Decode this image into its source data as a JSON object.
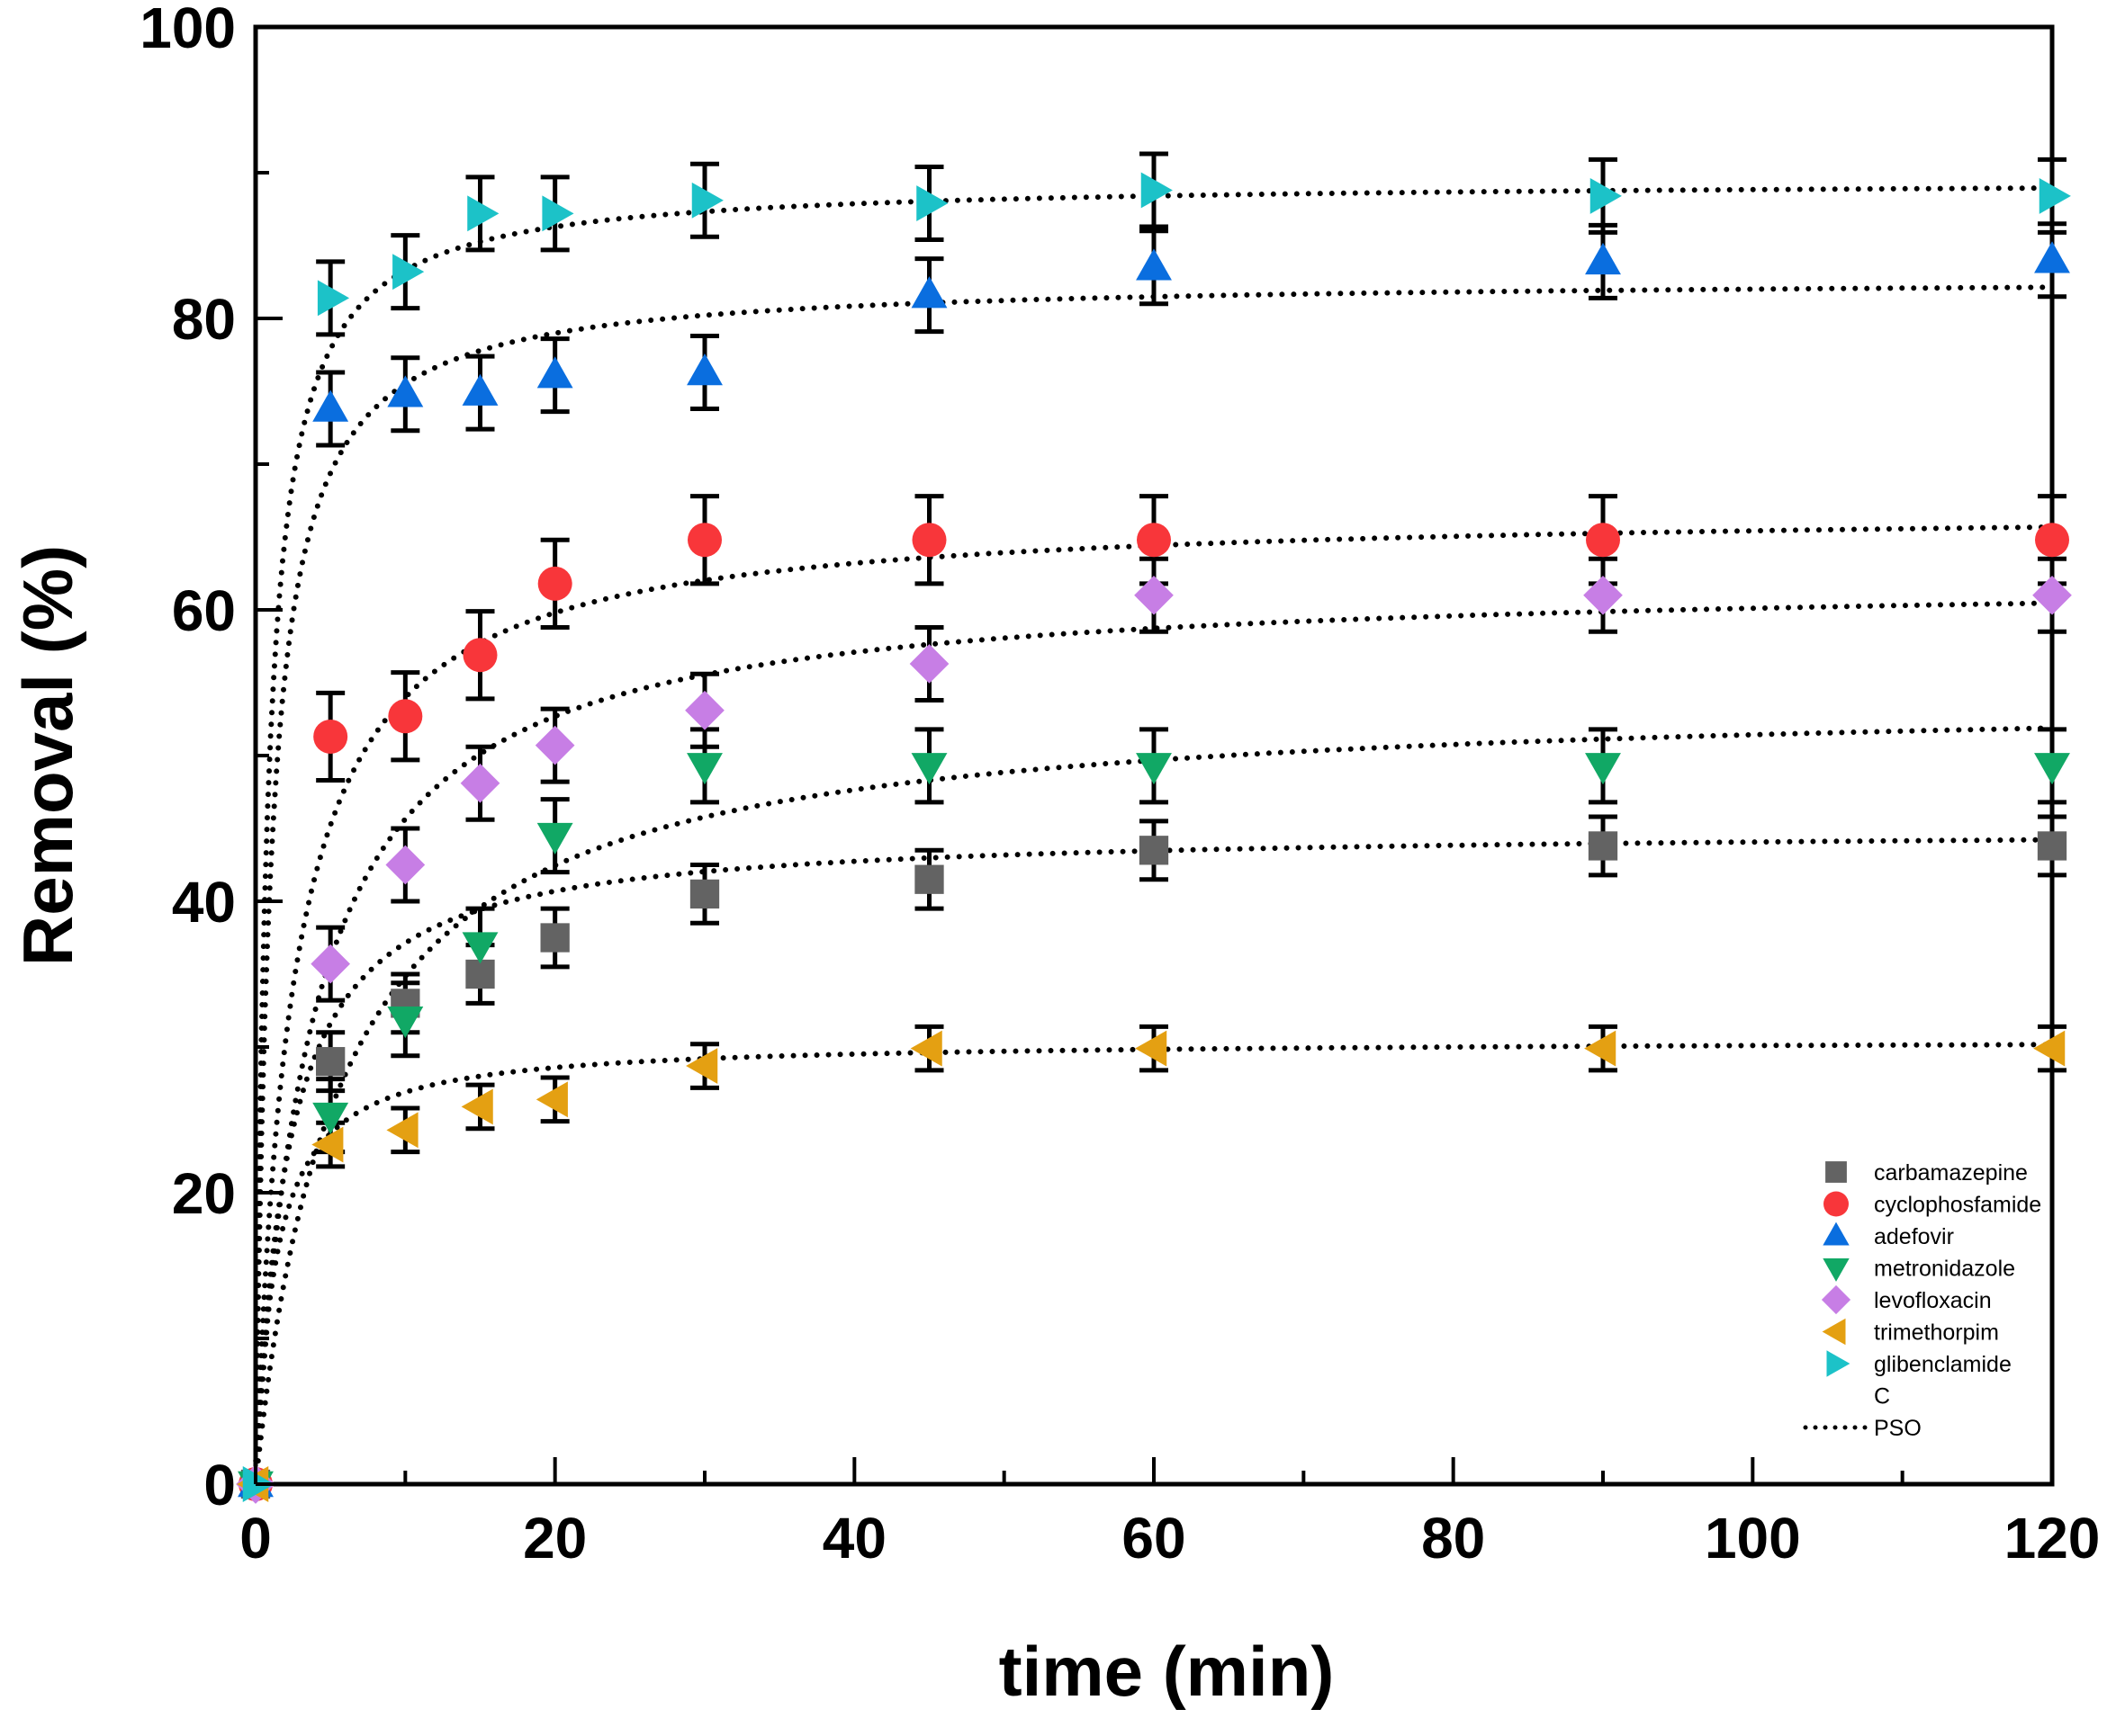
{
  "chart_data": {
    "type": "scatter",
    "title": "",
    "xlabel": "time (min)",
    "ylabel": "Removal (%)",
    "xlim": [
      0,
      120
    ],
    "ylim": [
      0,
      100
    ],
    "x_ticks": [
      0,
      20,
      40,
      60,
      80,
      100,
      120
    ],
    "y_ticks": [
      0,
      20,
      40,
      60,
      80,
      100
    ],
    "x_tick_labels": [
      "0",
      "20",
      "40",
      "60",
      "80",
      "100",
      "120"
    ],
    "y_tick_labels": [
      "0",
      "20",
      "40",
      "60",
      "80",
      "100"
    ],
    "grid": false,
    "legend_position": "bottom-right",
    "x": [
      0,
      5,
      10,
      15,
      20,
      30,
      45,
      60,
      90,
      120
    ],
    "series": [
      {
        "name": "carbamazepine",
        "marker": "square",
        "color": "#636363",
        "values": [
          0,
          29,
          33,
          35,
          37.5,
          40.5,
          41.5,
          43.5,
          43.8,
          43.8
        ],
        "error": 2
      },
      {
        "name": "cyclophosfamide",
        "marker": "circle",
        "color": "#f8363a",
        "values": [
          0,
          51.3,
          52.7,
          56.9,
          61.8,
          64.8,
          64.8,
          64.8,
          64.8,
          64.8
        ],
        "error": 3
      },
      {
        "name": "adefovir",
        "marker": "triangle-up",
        "color": "#0a6edf",
        "values": [
          0,
          73.8,
          74.8,
          74.9,
          76.1,
          76.3,
          81.6,
          83.5,
          83.9,
          84.0
        ],
        "error": 2.5
      },
      {
        "name": "metronidazole",
        "marker": "triangle-down",
        "color": "#11a865",
        "values": [
          0,
          25.3,
          31.9,
          37.0,
          44.5,
          49.3,
          49.3,
          49.3,
          49.3,
          49.3
        ],
        "error": 2.5
      },
      {
        "name": "levofloxacin",
        "marker": "diamond",
        "color": "#c77ee5",
        "values": [
          0,
          35.7,
          42.5,
          48.1,
          50.7,
          53.1,
          56.3,
          61.0,
          61.0,
          61.0
        ],
        "error": 2.5
      },
      {
        "name": "trimethorpim",
        "marker": "triangle-left",
        "color": "#e4a012",
        "values": [
          0,
          23.3,
          24.3,
          25.9,
          26.4,
          28.7,
          29.9,
          29.9,
          29.9,
          29.9
        ],
        "error": 1.5
      },
      {
        "name": "glibenclamide",
        "marker": "triangle-right",
        "color": "#1cc2c8",
        "values": [
          0,
          81.4,
          83.2,
          87.2,
          87.2,
          88.1,
          87.9,
          88.8,
          88.4,
          88.4
        ],
        "error": 2.5
      }
    ],
    "fits": {
      "name": "PSO",
      "style": "dotted",
      "color": "#000000",
      "curves": [
        {
          "series": "carbamazepine",
          "qe": 45.0,
          "k": 0.0105
        },
        {
          "series": "cyclophosfamide",
          "qe": 67.0,
          "k": 0.0062
        },
        {
          "series": "adefovir",
          "qe": 82.8,
          "k": 0.0125
        },
        {
          "series": "metronidazole",
          "qe": 54.3,
          "k": 0.0033
        },
        {
          "series": "levofloxacin",
          "qe": 62.3,
          "k": 0.0044
        },
        {
          "series": "trimethorpim",
          "qe": 30.5,
          "k": 0.0245
        },
        {
          "series": "glibenclamide",
          "qe": 89.5,
          "k": 0.015
        }
      ]
    },
    "legend_entries": [
      "carbamazepine",
      "cyclophosfamide",
      "adefovir",
      "metronidazole",
      "levofloxacin",
      "trimethorpim",
      "glibenclamide",
      "C",
      "PSO"
    ]
  }
}
